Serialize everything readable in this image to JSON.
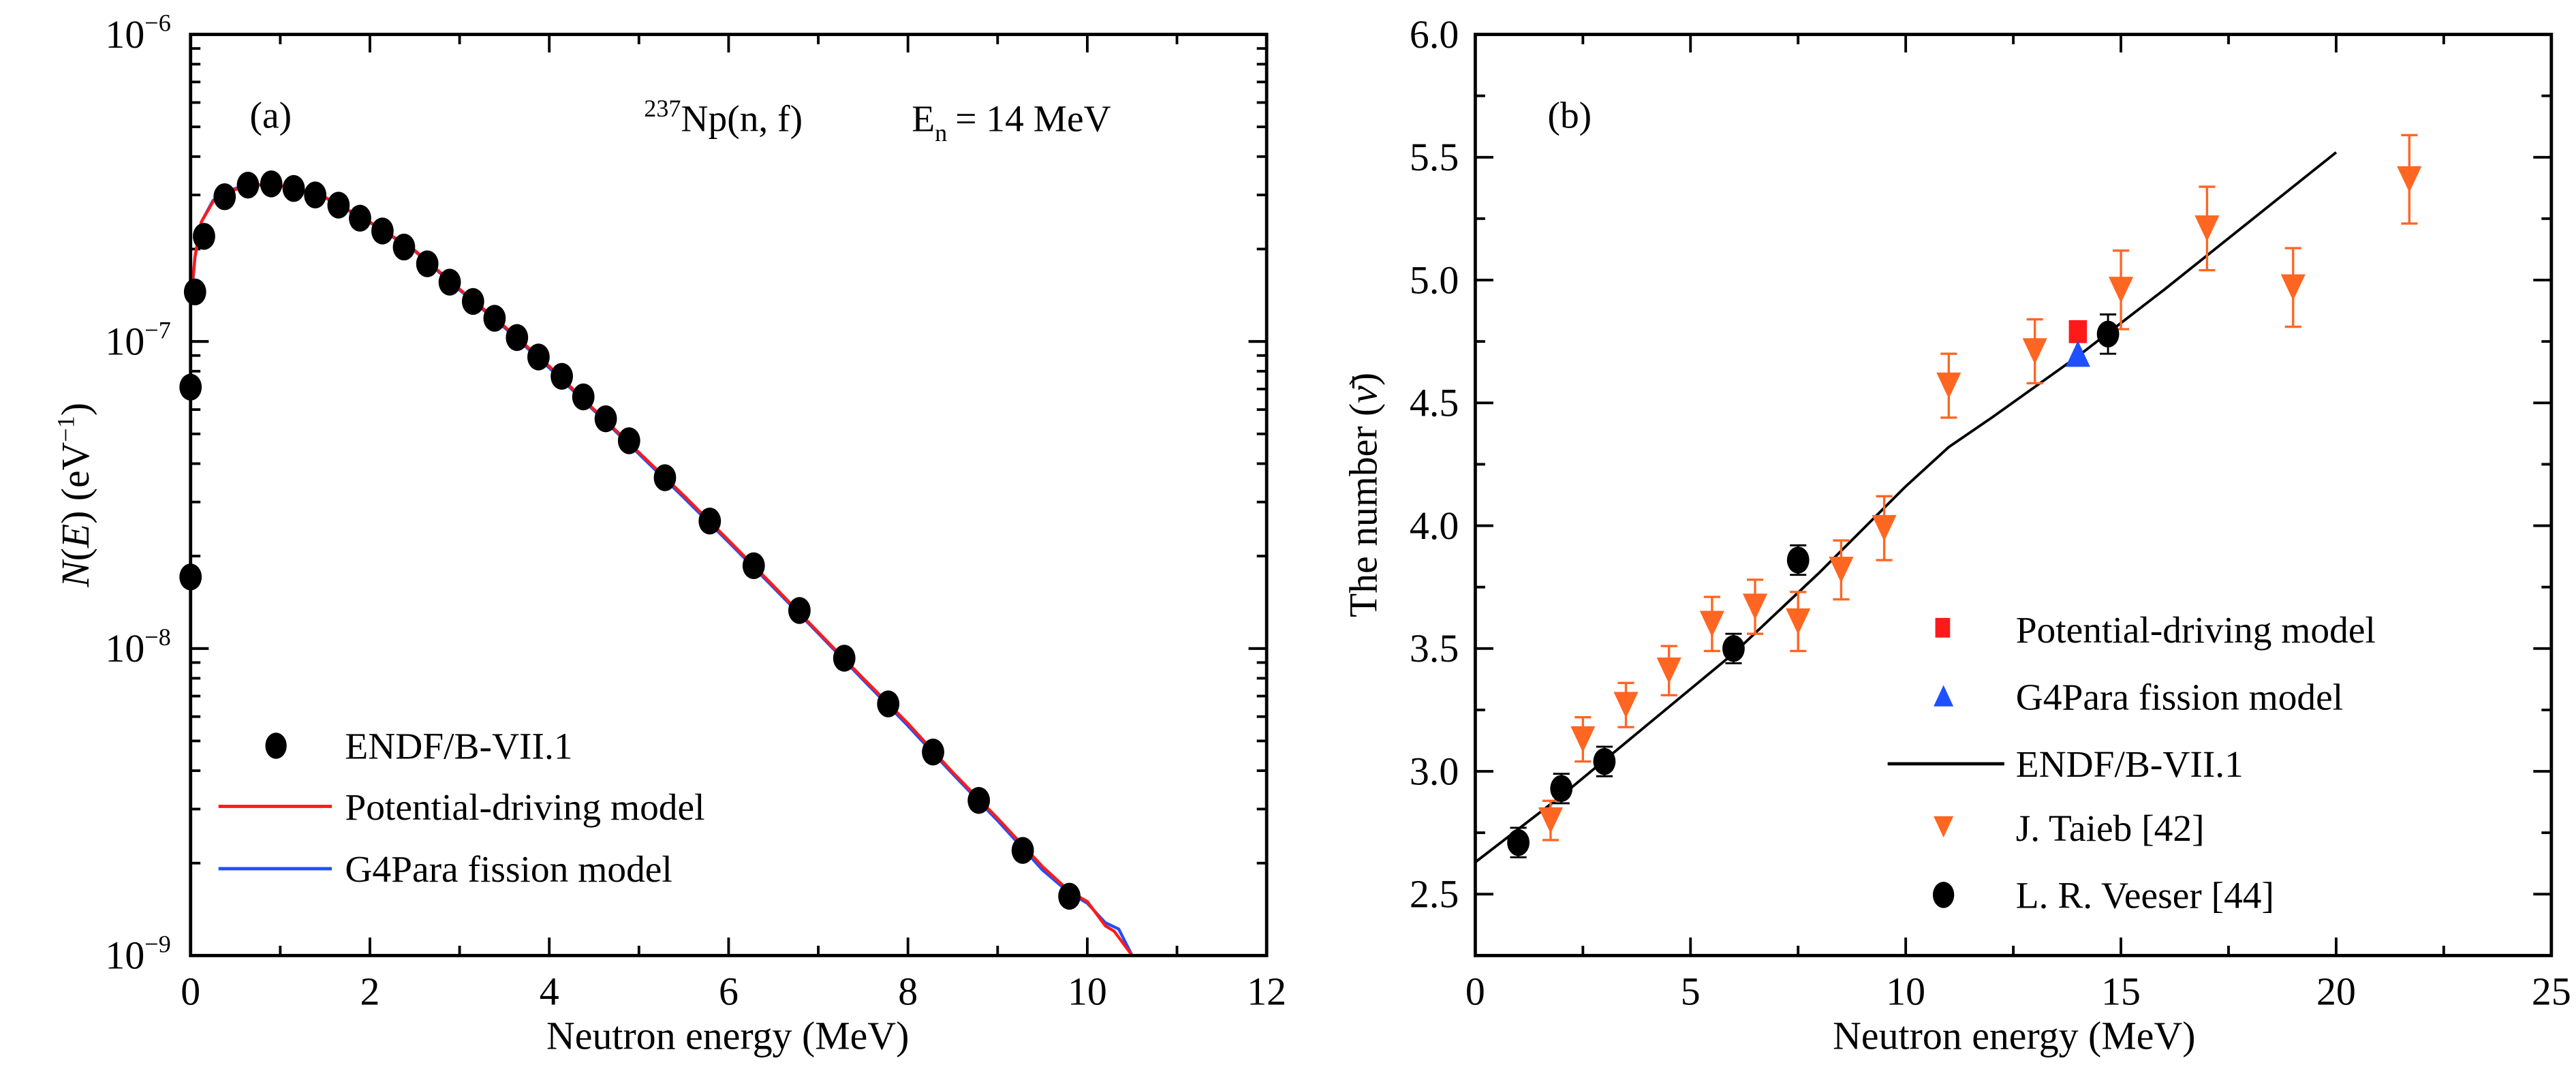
{
  "chart_data": [
    {
      "id": "a",
      "type": "line",
      "panel_label": "(a)",
      "annotation": {
        "isotope_mass": "237",
        "reaction": "Np(n, f)",
        "energy_symbol": "E",
        "energy_subscript": "n",
        "energy_value": "= 14 MeV"
      },
      "xlabel": "Neutron energy (MeV)",
      "ylabel_parts": {
        "func": "N",
        "open": "(",
        "var": "E",
        "close": ")",
        "unit": " (eV",
        "exp": "−1",
        "unit_close": ")"
      },
      "xlim": [
        0,
        12
      ],
      "ylim": [
        1e-09,
        1e-06
      ],
      "yscale": "log",
      "xticks": [
        0,
        2,
        4,
        6,
        8,
        10,
        12
      ],
      "xtick_labels": [
        "0",
        "2",
        "4",
        "6",
        "8",
        "10",
        "12"
      ],
      "yticks": [
        1e-06,
        1e-07,
        1e-08,
        1e-09
      ],
      "ytick_labels": [
        {
          "base": "10",
          "exp": "−6"
        },
        {
          "base": "10",
          "exp": "−7"
        },
        {
          "base": "10",
          "exp": "−8"
        },
        {
          "base": "10",
          "exp": "−9"
        }
      ],
      "legend_position": "bottom-left",
      "series": [
        {
          "name": "ENDF/B-VII.1",
          "kind": "scatter",
          "marker": "circle",
          "color": "#000000",
          "x": [
            0.0,
            0.0,
            0.05,
            0.15,
            0.38,
            0.64,
            0.9,
            1.15,
            1.39,
            1.65,
            1.89,
            2.14,
            2.38,
            2.64,
            2.89,
            3.15,
            3.39,
            3.64,
            3.88,
            4.14,
            4.38,
            4.63,
            4.89,
            5.29,
            5.79,
            6.28,
            6.79,
            7.29,
            7.78,
            8.28,
            8.79,
            9.28,
            9.8
          ],
          "y": [
            1.71e-08,
            7.1e-08,
            1.45e-07,
            2.2e-07,
            2.96e-07,
            3.23e-07,
            3.26e-07,
            3.15e-07,
            3e-07,
            2.78e-07,
            2.52e-07,
            2.29e-07,
            2.03e-07,
            1.79e-07,
            1.56e-07,
            1.35e-07,
            1.19e-07,
            1.03e-07,
            8.9e-08,
            7.7e-08,
            6.6e-08,
            5.6e-08,
            4.75e-08,
            3.6e-08,
            2.6e-08,
            1.86e-08,
            1.33e-08,
            9.3e-09,
            6.6e-09,
            4.6e-09,
            3.2e-09,
            2.2e-09,
            1.56e-09
          ]
        },
        {
          "name": "Potential-driving model",
          "kind": "line",
          "color": "#ff1a1a",
          "x": [
            0.0,
            0.05,
            0.12,
            0.25,
            0.4,
            0.6,
            0.9,
            1.2,
            1.5,
            2.0,
            2.5,
            3.0,
            3.5,
            4.0,
            4.5,
            5.0,
            5.5,
            6.0,
            6.5,
            7.0,
            7.5,
            8.0,
            8.5,
            9.0,
            9.5,
            9.8,
            10.0,
            10.2,
            10.3,
            10.5
          ],
          "y": [
            1.35e-07,
            1.9e-07,
            2.45e-07,
            2.85e-07,
            3.05e-07,
            3.2e-07,
            3.25e-07,
            3.15e-07,
            2.95e-07,
            2.45e-07,
            1.98e-07,
            1.48e-07,
            1.12e-07,
            8.3e-08,
            6e-08,
            4.35e-08,
            3.15e-08,
            2.25e-08,
            1.6e-08,
            1.13e-08,
            8e-09,
            5.7e-09,
            3.95e-09,
            2.8e-09,
            1.95e-09,
            1.62e-09,
            1.5e-09,
            1.25e-09,
            1.2e-09,
            1e-09
          ]
        },
        {
          "name": "G4Para fission model",
          "kind": "line",
          "color": "#1f4fff",
          "x": [
            0.0,
            0.05,
            0.12,
            0.25,
            0.4,
            0.6,
            0.9,
            1.2,
            1.5,
            2.0,
            2.5,
            3.0,
            3.5,
            4.0,
            4.5,
            5.0,
            5.5,
            6.0,
            6.5,
            7.0,
            7.5,
            8.0,
            8.3,
            8.5,
            9.0,
            9.5,
            9.8,
            10.0,
            10.2,
            10.35,
            10.5
          ],
          "y": [
            1.3e-07,
            1.88e-07,
            2.45e-07,
            2.88e-07,
            3.08e-07,
            3.22e-07,
            3.25e-07,
            3.14e-07,
            2.94e-07,
            2.44e-07,
            1.97e-07,
            1.47e-07,
            1.11e-07,
            8.2e-08,
            5.95e-08,
            4.3e-08,
            3.1e-08,
            2.22e-08,
            1.58e-08,
            1.12e-08,
            7.9e-09,
            5.6e-09,
            4.5e-09,
            3.9e-09,
            2.75e-09,
            1.9e-09,
            1.6e-09,
            1.48e-09,
            1.28e-09,
            1.22e-09,
            1e-09
          ]
        }
      ]
    },
    {
      "id": "b",
      "type": "scatter",
      "panel_label": "(b)",
      "xlabel": "Neutron energy (MeV)",
      "ylabel": "The number (ν̄)",
      "ylabel_parts": {
        "text": "The number (",
        "symbol": "ν̄",
        "close": ")"
      },
      "xlim": [
        0,
        25
      ],
      "ylim": [
        2.25,
        6.0
      ],
      "xticks": [
        0,
        5,
        10,
        15,
        20,
        25
      ],
      "xtick_labels": [
        "0",
        "5",
        "10",
        "15",
        "20",
        "25"
      ],
      "yticks": [
        2.5,
        3.0,
        3.5,
        4.0,
        4.5,
        5.0,
        5.5,
        6.0
      ],
      "ytick_labels": [
        "2.5",
        "3.0",
        "3.5",
        "4.0",
        "4.5",
        "5.0",
        "5.5",
        "6.0"
      ],
      "legend_position": "bottom-right",
      "series": [
        {
          "name": "Potential-driving model",
          "kind": "scatter",
          "marker": "square",
          "color": "#ff1a1a",
          "x": [
            14.0
          ],
          "y": [
            4.79
          ]
        },
        {
          "name": "G4Para fission model",
          "kind": "scatter",
          "marker": "triangle-up",
          "color": "#1f4fff",
          "x": [
            14.0
          ],
          "y": [
            4.7
          ]
        },
        {
          "name": "ENDF/B-VII.1",
          "kind": "line",
          "color": "#000000",
          "x": [
            0.0,
            2.0,
            4.0,
            6.0,
            8.0,
            10.0,
            11.0,
            12.0,
            14.0,
            16.0,
            18.0,
            20.0
          ],
          "y": [
            2.63,
            2.9,
            3.19,
            3.48,
            3.81,
            4.16,
            4.32,
            4.44,
            4.69,
            4.96,
            5.24,
            5.52
          ]
        },
        {
          "name": "J. Taieb [42]",
          "kind": "scatter",
          "marker": "triangle-down",
          "color": "#ff6622",
          "x": [
            1.75,
            2.5,
            3.5,
            4.5,
            5.5,
            6.5,
            7.5,
            8.5,
            9.5,
            11.0,
            13.0,
            15.0,
            17.0,
            19.0,
            21.7
          ],
          "y": [
            2.8,
            3.13,
            3.27,
            3.41,
            3.6,
            3.67,
            3.61,
            3.82,
            3.99,
            4.57,
            4.71,
            4.96,
            5.21,
            4.97,
            5.41
          ],
          "err": [
            0.08,
            0.09,
            0.09,
            0.1,
            0.11,
            0.11,
            0.12,
            0.12,
            0.13,
            0.13,
            0.13,
            0.16,
            0.17,
            0.16,
            0.18
          ]
        },
        {
          "name": "L. R. Veeser [44]",
          "kind": "scatter",
          "marker": "circle",
          "color": "#000000",
          "x": [
            1.0,
            2.0,
            3.0,
            6.0,
            7.5,
            14.7
          ],
          "y": [
            2.71,
            2.93,
            3.04,
            3.5,
            3.86,
            4.78
          ],
          "err": [
            0.06,
            0.06,
            0.06,
            0.06,
            0.06,
            0.08
          ]
        }
      ]
    }
  ]
}
